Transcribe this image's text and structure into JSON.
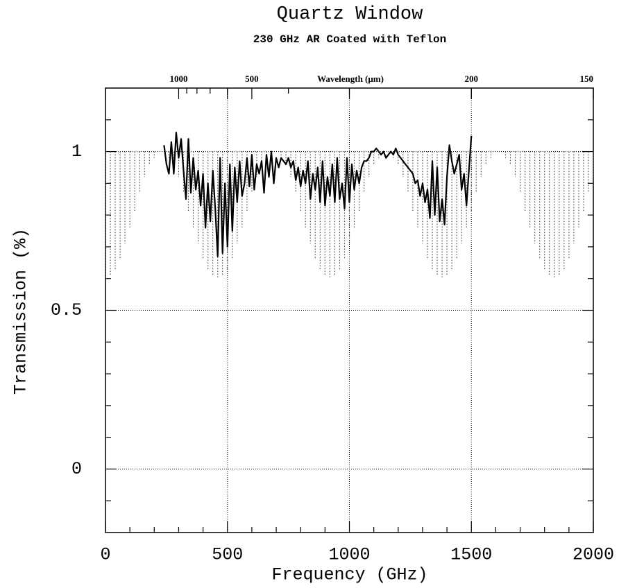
{
  "chart_data": {
    "type": "line",
    "title": "Quartz Window",
    "subtitle": "230 GHz AR Coated with Teflon",
    "x_label": "Frequency (GHz)",
    "y_label": "Transmission (%)",
    "x2_label": "Wavelength (μm)",
    "xlim": [
      0,
      2000
    ],
    "ylim": [
      -0.2,
      1.2
    ],
    "xticks": [
      0,
      500,
      1000,
      1500,
      2000
    ],
    "yticks": [
      0,
      0.5,
      1
    ],
    "xminor": [
      100,
      200,
      300,
      400,
      600,
      700,
      800,
      900,
      1100,
      1200,
      1300,
      1400,
      1600,
      1700,
      1800,
      1900
    ],
    "yminor": [
      -0.1,
      0.1,
      0.2,
      0.3,
      0.4,
      0.6,
      0.7,
      0.8,
      0.9,
      1.1
    ],
    "x2ticks": [
      {
        "value": 300,
        "label": "1000"
      },
      {
        "value": 600,
        "label": "500"
      },
      {
        "value": 1500,
        "label": "200"
      },
      {
        "value": 2000,
        "label": "150"
      }
    ],
    "x2minor": [
      333,
      375,
      429,
      500,
      750,
      1000
    ],
    "grid": true,
    "series": [
      {
        "color": "#444444",
        "style": "drop",
        "x": [
          0,
          20,
          40,
          60,
          80,
          100,
          120,
          140,
          160,
          180,
          200,
          220,
          240,
          260,
          280,
          300,
          320,
          340,
          360,
          380,
          400,
          420,
          440,
          460,
          480,
          500,
          520,
          540,
          560,
          580,
          600,
          620,
          640,
          660,
          680,
          700,
          720,
          740,
          760,
          780,
          800,
          820,
          840,
          860,
          880,
          900,
          920,
          940,
          960,
          980,
          1000,
          1020,
          1040,
          1060,
          1080,
          1100,
          1120,
          1140,
          1160,
          1180,
          1200,
          1220,
          1240,
          1260,
          1280,
          1300,
          1320,
          1340,
          1360,
          1380,
          1400,
          1420,
          1440,
          1460,
          1480,
          1500,
          1520,
          1540,
          1560,
          1580,
          1600,
          1620,
          1640,
          1660,
          1680,
          1700,
          1720,
          1740,
          1760,
          1780,
          1800,
          1820,
          1840,
          1860,
          1880,
          1900,
          1920,
          1940,
          1960,
          1980,
          2000
        ],
        "values": [
          0.6,
          0.61,
          0.63,
          0.66,
          0.71,
          0.76,
          0.81,
          0.87,
          0.92,
          0.96,
          0.98,
          1,
          1,
          0.98,
          0.96,
          0.92,
          0.87,
          0.81,
          0.76,
          0.71,
          0.66,
          0.63,
          0.61,
          0.6,
          0.61,
          0.63,
          0.66,
          0.71,
          0.76,
          0.81,
          0.87,
          0.92,
          0.96,
          0.98,
          1,
          1,
          0.98,
          0.96,
          0.92,
          0.87,
          0.81,
          0.76,
          0.71,
          0.66,
          0.63,
          0.61,
          0.6,
          0.61,
          0.63,
          0.66,
          0.71,
          0.76,
          0.81,
          0.87,
          0.92,
          0.96,
          0.98,
          1,
          1,
          0.98,
          0.96,
          0.92,
          0.87,
          0.81,
          0.76,
          0.71,
          0.66,
          0.63,
          0.61,
          0.6,
          0.61,
          0.63,
          0.66,
          0.71,
          0.76,
          0.81,
          0.87,
          0.92,
          0.96,
          0.98,
          1,
          1,
          0.98,
          0.96,
          0.92,
          0.87,
          0.81,
          0.76,
          0.71,
          0.66,
          0.63,
          0.61,
          0.6,
          0.61,
          0.63,
          0.66,
          0.71,
          0.76,
          0.81,
          0.87,
          0.92
        ]
      },
      {
        "color": "#000000",
        "style": "solid",
        "x": [
          240,
          250,
          260,
          270,
          280,
          290,
          300,
          310,
          320,
          330,
          340,
          350,
          360,
          370,
          380,
          390,
          400,
          410,
          420,
          430,
          440,
          450,
          460,
          470,
          480,
          490,
          500,
          510,
          520,
          530,
          540,
          550,
          560,
          570,
          580,
          590,
          600,
          610,
          620,
          630,
          640,
          650,
          660,
          670,
          680,
          690,
          700,
          710,
          720,
          730,
          740,
          750,
          760,
          770,
          780,
          790,
          800,
          810,
          820,
          830,
          840,
          850,
          860,
          870,
          880,
          890,
          900,
          910,
          920,
          930,
          940,
          950,
          960,
          970,
          980,
          990,
          1000,
          1010,
          1020,
          1030,
          1040,
          1050,
          1060,
          1070,
          1080,
          1090,
          1100,
          1110,
          1120,
          1130,
          1140,
          1150,
          1160,
          1170,
          1180,
          1190,
          1200,
          1210,
          1220,
          1230,
          1240,
          1250,
          1260,
          1270,
          1280,
          1290,
          1300,
          1310,
          1320,
          1330,
          1340,
          1350,
          1360,
          1370,
          1380,
          1390,
          1400,
          1410,
          1420,
          1430,
          1440,
          1450,
          1460,
          1470,
          1480,
          1490,
          1500
        ],
        "values": [
          1.02,
          0.96,
          0.93,
          1.03,
          0.93,
          1.06,
          0.98,
          1.04,
          0.94,
          0.85,
          1.04,
          0.87,
          0.98,
          0.88,
          0.94,
          0.83,
          0.93,
          0.76,
          0.9,
          0.78,
          0.94,
          0.82,
          0.67,
          0.98,
          0.68,
          0.9,
          0.7,
          0.96,
          0.75,
          0.95,
          0.84,
          0.97,
          0.86,
          0.9,
          0.98,
          0.89,
          0.99,
          0.88,
          0.96,
          0.93,
          0.97,
          0.87,
          0.99,
          0.92,
          1.0,
          0.9,
          0.98,
          0.95,
          0.98,
          0.97,
          0.96,
          0.98,
          0.95,
          0.97,
          0.91,
          0.95,
          0.89,
          0.94,
          0.9,
          0.97,
          0.85,
          0.93,
          0.88,
          0.95,
          0.84,
          0.97,
          0.83,
          0.92,
          0.86,
          0.96,
          0.84,
          0.98,
          0.85,
          0.9,
          0.82,
          0.98,
          0.84,
          0.96,
          0.88,
          0.94,
          0.9,
          0.95,
          0.97,
          0.97,
          0.98,
          1.0,
          1.0,
          1.01,
          1.0,
          0.99,
          1.0,
          0.98,
          0.99,
          1.0,
          0.99,
          1.01,
          0.99,
          0.98,
          0.97,
          0.96,
          0.95,
          0.94,
          0.93,
          0.9,
          0.91,
          0.86,
          0.9,
          0.84,
          0.88,
          0.79,
          0.97,
          0.8,
          0.95,
          0.78,
          0.85,
          0.77,
          0.92,
          1.02,
          0.97,
          0.93,
          0.96,
          0.99,
          0.88,
          0.93,
          0.83,
          0.94,
          1.05
        ]
      }
    ]
  }
}
